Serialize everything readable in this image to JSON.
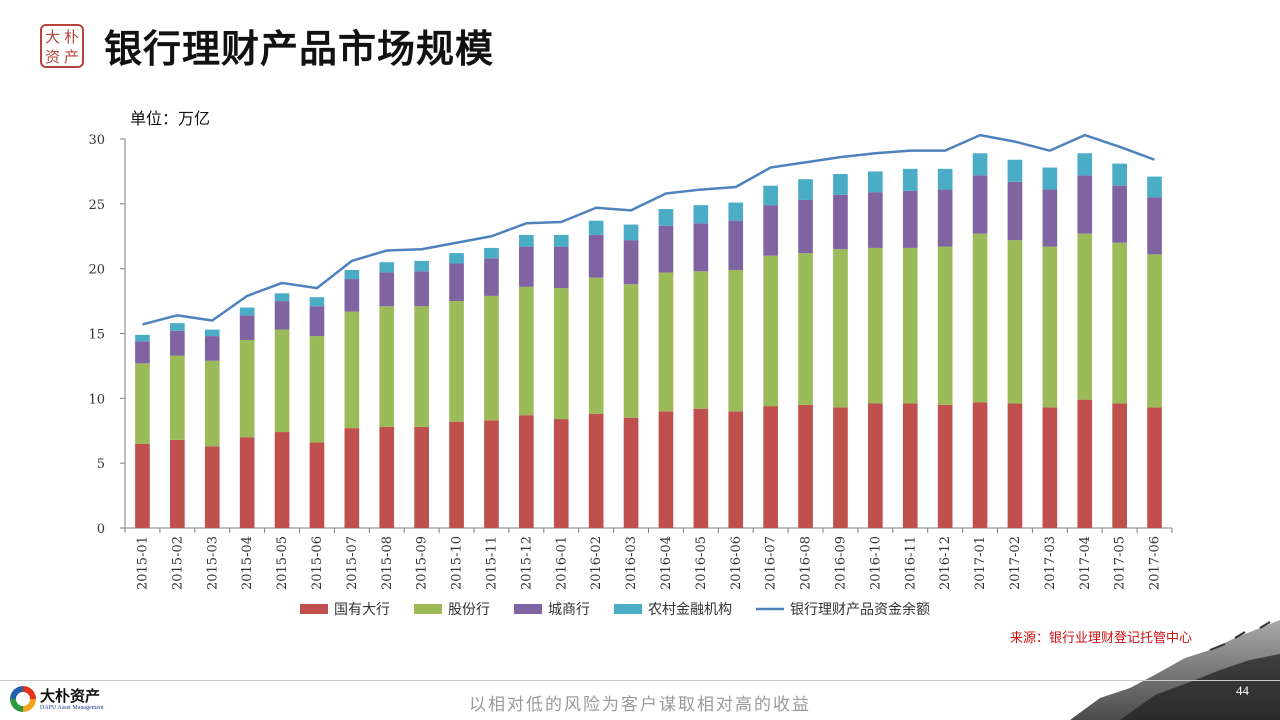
{
  "header": {
    "title": "银行理财产品市场规模",
    "seal_chars": [
      "大",
      "朴",
      "资",
      "产"
    ]
  },
  "chart_data": {
    "type": "bar",
    "stacked": true,
    "title": "",
    "unit_label": "单位：万亿",
    "xlabel": "",
    "ylabel": "",
    "ylim": [
      0,
      30
    ],
    "yticks": [
      0,
      5,
      10,
      15,
      20,
      25,
      30
    ],
    "grid": false,
    "legend_position": "bottom",
    "categories": [
      "2015-01",
      "2015-02",
      "2015-03",
      "2015-04",
      "2015-05",
      "2015-06",
      "2015-07",
      "2015-08",
      "2015-09",
      "2015-10",
      "2015-11",
      "2015-12",
      "2016-01",
      "2016-02",
      "2016-03",
      "2016-04",
      "2016-05",
      "2016-06",
      "2016-07",
      "2016-08",
      "2016-09",
      "2016-10",
      "2016-11",
      "2016-12",
      "2017-01",
      "2017-02",
      "2017-03",
      "2017-04",
      "2017-05",
      "2017-06"
    ],
    "series": [
      {
        "name": "国有大行",
        "type": "bar",
        "color": "#c0504d",
        "values": [
          6.5,
          6.8,
          6.3,
          7.0,
          7.4,
          6.6,
          7.7,
          7.8,
          7.8,
          8.2,
          8.3,
          8.7,
          8.4,
          8.8,
          8.5,
          9.0,
          9.2,
          9.0,
          9.4,
          9.5,
          9.3,
          9.6,
          9.6,
          9.5,
          9.7,
          9.6,
          9.3,
          9.9,
          9.6,
          9.3
        ]
      },
      {
        "name": "股份行",
        "type": "bar",
        "color": "#9bbb59",
        "values": [
          6.2,
          6.5,
          6.6,
          7.5,
          7.9,
          8.2,
          9.0,
          9.3,
          9.3,
          9.3,
          9.6,
          9.9,
          10.1,
          10.5,
          10.3,
          10.7,
          10.6,
          10.9,
          11.6,
          11.7,
          12.2,
          12.0,
          12.0,
          12.2,
          13.0,
          12.6,
          12.4,
          12.8,
          12.4,
          11.8
        ]
      },
      {
        "name": "城商行",
        "type": "bar",
        "color": "#8064a2",
        "values": [
          1.7,
          1.9,
          1.9,
          1.9,
          2.2,
          2.3,
          2.5,
          2.6,
          2.7,
          2.9,
          2.9,
          3.1,
          3.2,
          3.3,
          3.4,
          3.6,
          3.7,
          3.8,
          3.9,
          4.1,
          4.2,
          4.3,
          4.4,
          4.4,
          4.5,
          4.5,
          4.4,
          4.5,
          4.4,
          4.4
        ]
      },
      {
        "name": "农村金融机构",
        "type": "bar",
        "color": "#4bacc6",
        "values": [
          0.5,
          0.6,
          0.5,
          0.6,
          0.6,
          0.7,
          0.7,
          0.8,
          0.8,
          0.8,
          0.8,
          0.9,
          0.9,
          1.1,
          1.2,
          1.3,
          1.4,
          1.4,
          1.5,
          1.6,
          1.6,
          1.6,
          1.7,
          1.6,
          1.7,
          1.7,
          1.7,
          1.7,
          1.7,
          1.6
        ]
      },
      {
        "name": "银行理财产品资金余额",
        "type": "line",
        "color": "#4f81bd",
        "values": [
          15.7,
          16.4,
          16.0,
          17.9,
          18.9,
          18.5,
          20.6,
          21.4,
          21.5,
          22.0,
          22.5,
          23.5,
          23.6,
          24.7,
          24.5,
          25.8,
          26.1,
          26.3,
          27.8,
          28.2,
          28.6,
          28.9,
          29.1,
          29.1,
          30.3,
          29.8,
          29.1,
          30.3,
          29.4,
          28.4
        ]
      }
    ]
  },
  "source_text": "来源：银行业理财登记托管中心",
  "footer": {
    "company_name": "大朴资产",
    "company_en": "DAPU Asset Management",
    "slogan": "以相对低的风险为客户谋取相对高的收益",
    "page_number": "44"
  }
}
